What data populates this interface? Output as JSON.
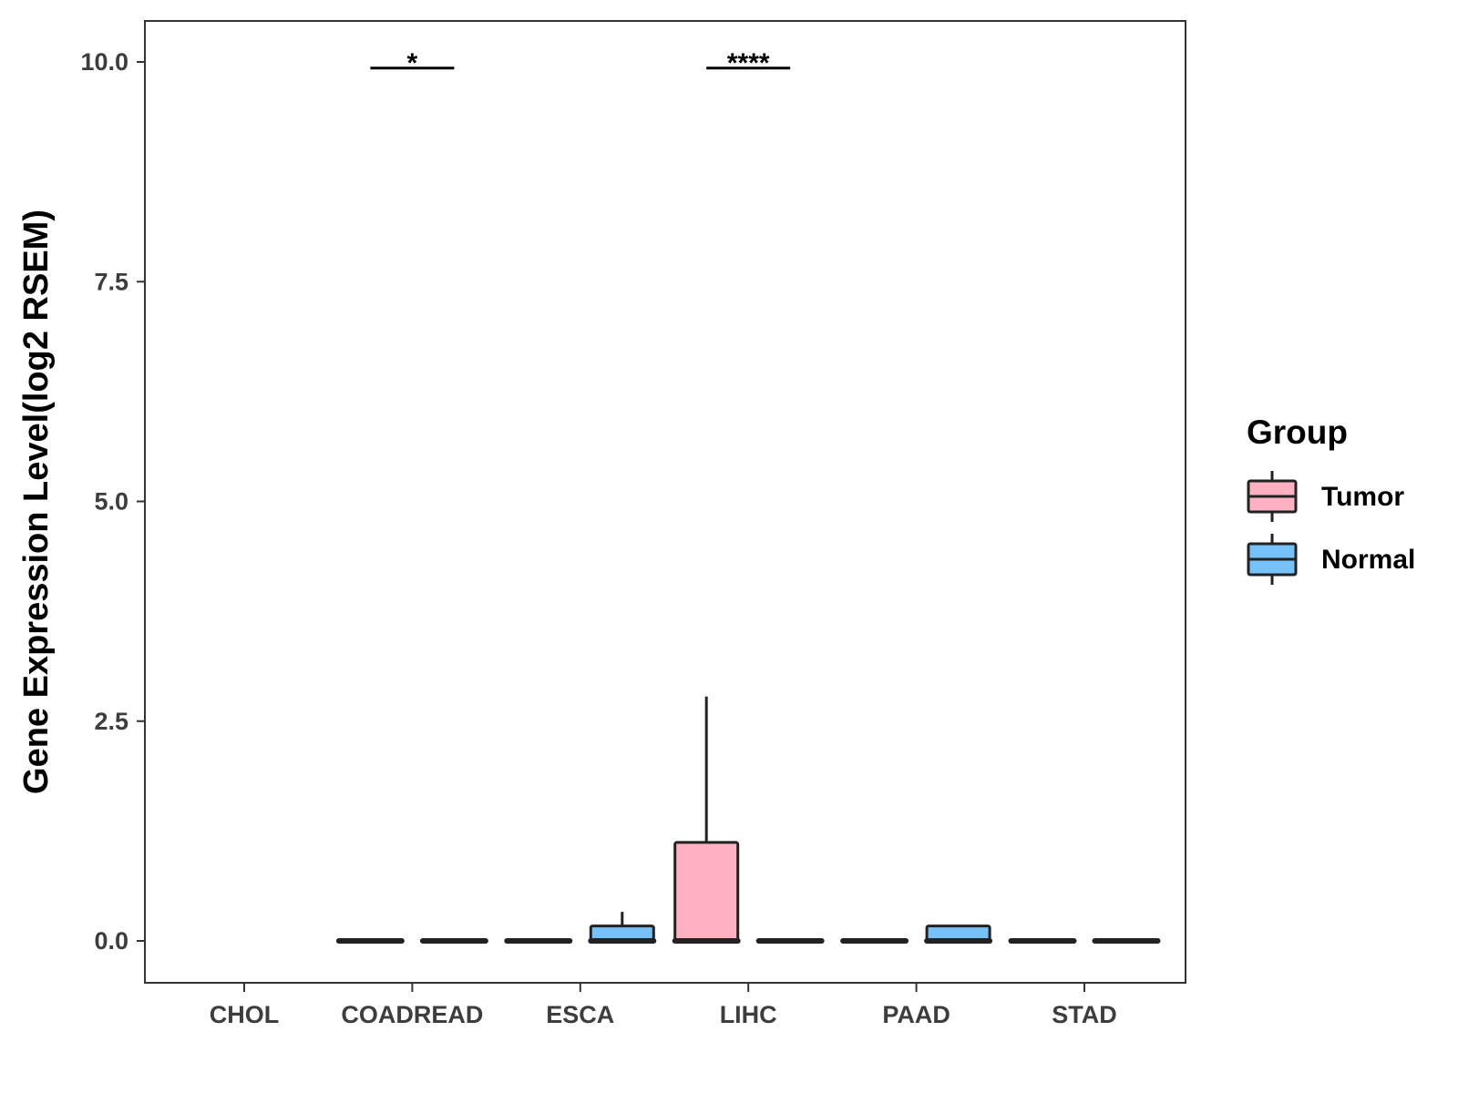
{
  "chart_data": {
    "type": "box",
    "ylabel": "Gene Expression Level(log2 RSEM)",
    "xlabel": "",
    "categories": [
      "CHOL",
      "COADREAD",
      "ESCA",
      "LIHC",
      "PAAD",
      "STAD"
    ],
    "yticks": [
      0.0,
      2.5,
      5.0,
      7.5,
      10.0
    ],
    "ytick_labels": [
      "0.0",
      "2.5",
      "5.0",
      "7.5",
      "10.0"
    ],
    "ylim": [
      -0.48,
      10.48
    ],
    "grid": false,
    "legend": {
      "title": "Group",
      "placement": "right",
      "entries": [
        {
          "label": "Tumor",
          "color": "#FFB1C1"
        },
        {
          "label": "Normal",
          "color": "#76C1F7"
        }
      ]
    },
    "series": [
      {
        "name": "Tumor",
        "color": "#FFB1C1",
        "boxes": [
          null,
          {
            "min": 0,
            "q1": 0,
            "median": 0,
            "q3": 0,
            "max": 0
          },
          {
            "min": 0,
            "q1": 0,
            "median": 0,
            "q3": 0,
            "max": 0
          },
          {
            "min": 0,
            "q1": 0,
            "median": 0,
            "q3": 1.12,
            "max": 2.78
          },
          {
            "min": 0,
            "q1": 0,
            "median": 0,
            "q3": 0,
            "max": 0
          },
          {
            "min": 0,
            "q1": 0,
            "median": 0,
            "q3": 0,
            "max": 0
          }
        ]
      },
      {
        "name": "Normal",
        "color": "#76C1F7",
        "boxes": [
          null,
          {
            "min": 0,
            "q1": 0,
            "median": 0,
            "q3": 0,
            "max": 0
          },
          {
            "min": 0,
            "q1": 0,
            "median": 0,
            "q3": 0.17,
            "max": 0.33
          },
          {
            "min": 0,
            "q1": 0,
            "median": 0,
            "q3": 0,
            "max": 0
          },
          {
            "min": 0,
            "q1": 0,
            "median": 0,
            "q3": 0.17,
            "max": 0.17
          },
          {
            "min": 0,
            "q1": 0,
            "median": 0,
            "q3": 0,
            "max": 0
          }
        ]
      }
    ],
    "annotations": [
      {
        "category": "COADREAD",
        "label": "*",
        "y": 9.93
      },
      {
        "category": "LIHC",
        "label": "****",
        "y": 9.93
      }
    ]
  }
}
